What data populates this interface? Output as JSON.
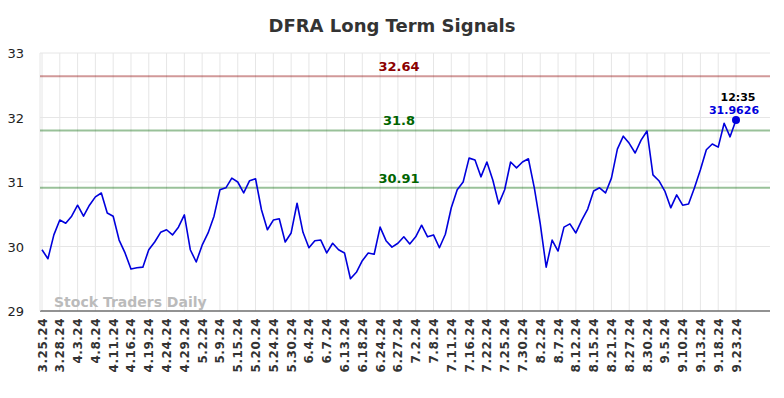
{
  "chart_data": {
    "type": "line",
    "title": "DFRA Long Term Signals",
    "watermark": "Stock Traders Daily",
    "time_label": "12:35",
    "grid": true,
    "ylim": [
      29,
      33
    ],
    "yticks": [
      29,
      30,
      31,
      32,
      33
    ],
    "categories": [
      "3.25.24",
      null,
      null,
      "3.28.24",
      null,
      null,
      "4.3.24",
      null,
      null,
      "4.8.24",
      null,
      null,
      "4.11.24",
      null,
      null,
      "4.16.24",
      null,
      null,
      "4.19.24",
      null,
      null,
      "4.24.24",
      null,
      null,
      "4.29.24",
      null,
      null,
      "5.2.24",
      null,
      null,
      "5.9.24",
      null,
      null,
      "5.15.24",
      null,
      null,
      "5.20.24",
      null,
      null,
      "5.24.24",
      null,
      null,
      "5.30.24",
      null,
      null,
      "6.4.24",
      null,
      null,
      "6.7.24",
      null,
      null,
      "6.13.24",
      null,
      null,
      "6.18.24",
      null,
      null,
      "6.24.24",
      null,
      null,
      "6.27.24",
      null,
      null,
      "7.2.24",
      null,
      null,
      "7.8.24",
      null,
      null,
      "7.11.24",
      null,
      null,
      "7.16.24",
      null,
      null,
      "7.22.24",
      null,
      null,
      "7.25.24",
      null,
      null,
      "7.30.24",
      null,
      null,
      "8.2.24",
      null,
      null,
      "8.7.24",
      null,
      null,
      "8.12.24",
      null,
      null,
      "8.15.24",
      null,
      null,
      "8.21.24",
      null,
      null,
      "8.27.24",
      null,
      null,
      "8.30.24",
      null,
      null,
      "9.5.24",
      null,
      null,
      "9.10.24",
      null,
      null,
      "9.13.24",
      null,
      null,
      "9.18.24",
      null,
      null,
      "9.23.24"
    ],
    "series": [
      {
        "color": "#0000dd",
        "values": [
          29.95,
          29.81,
          30.18,
          30.41,
          30.36,
          30.47,
          30.64,
          30.47,
          30.64,
          30.77,
          30.83,
          30.52,
          30.47,
          30.1,
          29.9,
          29.65,
          29.67,
          29.68,
          29.95,
          30.07,
          30.22,
          30.26,
          30.18,
          30.3,
          30.49,
          29.95,
          29.76,
          30.02,
          30.21,
          30.47,
          30.88,
          30.91,
          31.06,
          31.0,
          30.83,
          31.02,
          31.05,
          30.57,
          30.26,
          30.41,
          30.43,
          30.07,
          30.21,
          30.67,
          30.22,
          29.98,
          30.09,
          30.1,
          29.9,
          30.05,
          29.95,
          29.9,
          29.5,
          29.6,
          29.78,
          29.9,
          29.88,
          30.3,
          30.09,
          29.99,
          30.05,
          30.15,
          30.04,
          30.15,
          30.33,
          30.15,
          30.18,
          29.98,
          30.19,
          30.6,
          30.88,
          31.0,
          31.37,
          31.34,
          31.08,
          31.31,
          31.03,
          30.66,
          30.88,
          31.31,
          31.22,
          31.31,
          31.36,
          30.91,
          30.35,
          29.68,
          30.1,
          29.93,
          30.3,
          30.35,
          30.21,
          30.41,
          30.58,
          30.86,
          30.91,
          30.83,
          31.06,
          31.51,
          31.71,
          31.6,
          31.45,
          31.65,
          31.79,
          31.11,
          31.02,
          30.86,
          30.6,
          30.8,
          30.64,
          30.66,
          30.91,
          31.19,
          31.5,
          31.59,
          31.54,
          31.91,
          31.7,
          31.9626
        ]
      }
    ],
    "reference_lines": [
      {
        "value": 32.64,
        "color": "#8b0000"
      },
      {
        "value": 31.8,
        "color": "#006400"
      },
      {
        "value": 30.91,
        "color": "#006400"
      }
    ]
  }
}
